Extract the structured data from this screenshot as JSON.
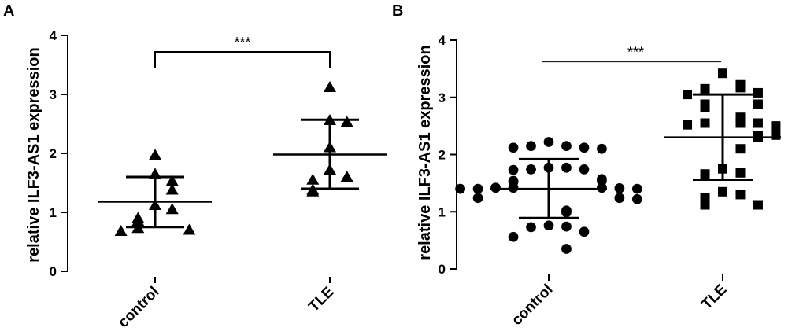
{
  "chart_data": [
    {
      "panel": "A",
      "type": "scatter",
      "ylabel": "relative ILF3-AS1 expression",
      "ylim": [
        0,
        4
      ],
      "yticks": [
        "0",
        "1",
        "2",
        "3",
        "4"
      ],
      "categories": [
        "control",
        "TLE"
      ],
      "marker": "triangle",
      "groups": [
        {
          "category": "control",
          "points": [
            1.97,
            1.65,
            1.53,
            1.38,
            1.12,
            1.05,
            0.9,
            0.85,
            0.73,
            0.7,
            0.68
          ],
          "mean": 1.18,
          "sd_low": 0.75,
          "sd_high": 1.6
        },
        {
          "category": "TLE",
          "points": [
            3.12,
            2.56,
            2.53,
            2.1,
            1.72,
            1.6,
            1.55,
            1.38,
            1.35
          ],
          "mean": 1.98,
          "sd_low": 1.4,
          "sd_high": 2.57
        }
      ],
      "significance": {
        "label": "***",
        "style": "bracket",
        "level": 3.72
      }
    },
    {
      "panel": "B",
      "type": "scatter",
      "ylabel": "relative ILF3-AS1 expression",
      "ylim": [
        0,
        4
      ],
      "yticks": [
        "0",
        "1",
        "2",
        "3",
        "4"
      ],
      "categories": [
        "control",
        "TLE"
      ],
      "marker": "circle-square",
      "groups": [
        {
          "category": "control",
          "marker": "circle",
          "points": [
            2.22,
            2.15,
            2.15,
            2.12,
            2.12,
            2.1,
            1.77,
            1.77,
            1.74,
            1.74,
            1.73,
            1.57,
            1.54,
            1.54,
            1.52,
            1.42,
            1.42,
            1.42,
            1.4,
            1.4,
            1.4,
            1.41,
            1.24,
            1.24,
            1.22,
            1.02,
            0.99,
            0.76,
            0.74,
            0.73,
            0.65,
            0.56,
            0.35
          ],
          "mean": 1.4,
          "sd_low": 0.89,
          "sd_high": 1.92
        },
        {
          "category": "TLE",
          "marker": "square",
          "points": [
            3.42,
            3.22,
            3.17,
            3.15,
            3.08,
            3.05,
            2.88,
            2.88,
            2.83,
            2.65,
            2.55,
            2.55,
            2.55,
            2.52,
            2.5,
            2.34,
            2.33,
            2.3,
            2.1,
            1.75,
            1.68,
            1.66,
            1.35,
            1.3,
            1.25,
            1.12,
            1.12
          ],
          "mean": 2.3,
          "sd_low": 1.56,
          "sd_high": 3.05
        }
      ],
      "significance": {
        "label": "***",
        "style": "line",
        "level": 3.62
      }
    }
  ]
}
